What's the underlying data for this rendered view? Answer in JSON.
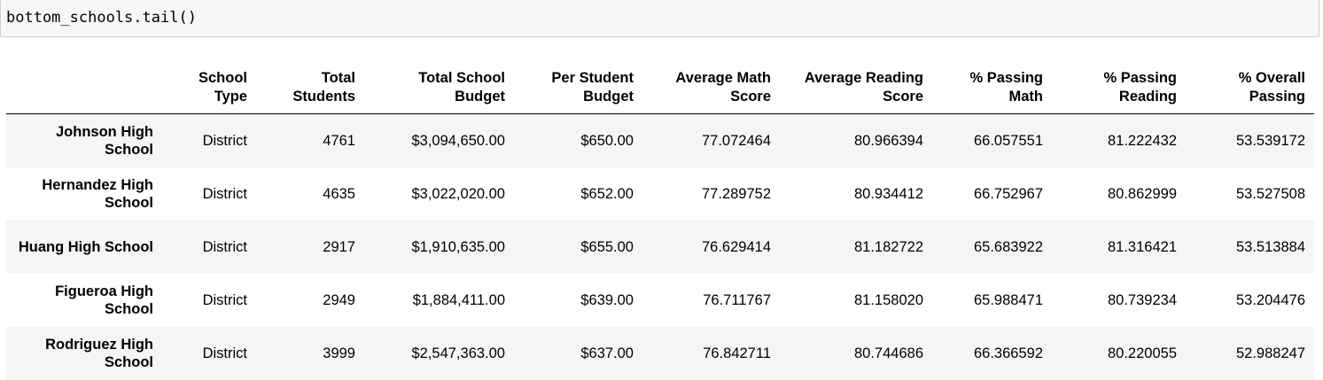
{
  "code_cell": {
    "source": "bottom_schools.tail()"
  },
  "dataframe": {
    "columns": [
      "",
      "School Type",
      "Total Students",
      "Total School Budget",
      "Per Student Budget",
      "Average Math Score",
      "Average Reading Score",
      "% Passing Math",
      "% Passing Reading",
      "% Overall Passing"
    ],
    "rows": [
      {
        "index": "Johnson High School",
        "cells": [
          "District",
          "4761",
          "$3,094,650.00",
          "$650.00",
          "77.072464",
          "80.966394",
          "66.057551",
          "81.222432",
          "53.539172"
        ]
      },
      {
        "index": "Hernandez High School",
        "cells": [
          "District",
          "4635",
          "$3,022,020.00",
          "$652.00",
          "77.289752",
          "80.934412",
          "66.752967",
          "80.862999",
          "53.527508"
        ]
      },
      {
        "index": "Huang High School",
        "cells": [
          "District",
          "2917",
          "$1,910,635.00",
          "$655.00",
          "76.629414",
          "81.182722",
          "65.683922",
          "81.316421",
          "53.513884"
        ]
      },
      {
        "index": "Figueroa High School",
        "cells": [
          "District",
          "2949",
          "$1,884,411.00",
          "$639.00",
          "76.711767",
          "81.158020",
          "65.988471",
          "80.739234",
          "53.204476"
        ]
      },
      {
        "index": "Rodriguez High School",
        "cells": [
          "District",
          "3999",
          "$2,547,363.00",
          "$637.00",
          "76.842711",
          "80.744686",
          "66.366592",
          "80.220055",
          "52.988247"
        ]
      }
    ]
  }
}
